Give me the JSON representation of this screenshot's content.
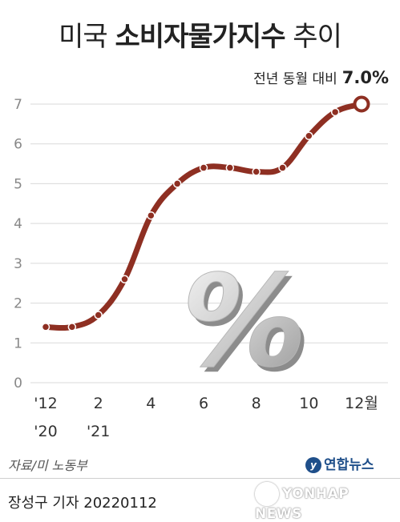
{
  "title": {
    "part1": "미국",
    "part2": "소비자물가지수",
    "part3": "추이"
  },
  "annotation": {
    "label": "전년 동월 대비",
    "value": "7.0%"
  },
  "source": "자료/미 노동부",
  "logo": "연합뉴스",
  "credit": "장성구 기자  20220112",
  "watermark": "YONHAP NEWS",
  "decorative_symbol": "%",
  "colors": {
    "line": "#8e2f22",
    "grid": "#d9d9d9",
    "axis_text": "#888888"
  },
  "chart_data": {
    "type": "line",
    "title": "미국 소비자물가지수 추이",
    "xlabel": "",
    "ylabel": "",
    "ylim": [
      0,
      7
    ],
    "yticks": [
      "0",
      "1",
      "2",
      "3",
      "4",
      "5",
      "6",
      "7"
    ],
    "x": [
      "2020-12",
      "2021-01",
      "2021-02",
      "2021-03",
      "2021-04",
      "2021-05",
      "2021-06",
      "2021-07",
      "2021-08",
      "2021-09",
      "2021-10",
      "2021-11",
      "2021-12"
    ],
    "xtick_labels": [
      {
        "index": 0,
        "top": "'12",
        "bottom": "'20"
      },
      {
        "index": 2,
        "top": "2",
        "bottom": "'21"
      },
      {
        "index": 4,
        "top": "4",
        "bottom": ""
      },
      {
        "index": 6,
        "top": "6",
        "bottom": ""
      },
      {
        "index": 8,
        "top": "8",
        "bottom": ""
      },
      {
        "index": 10,
        "top": "10",
        "bottom": ""
      },
      {
        "index": 12,
        "top": "12월",
        "bottom": ""
      }
    ],
    "series": [
      {
        "values": [
          1.4,
          1.4,
          1.7,
          2.6,
          4.2,
          5.0,
          5.4,
          5.4,
          5.3,
          5.4,
          6.2,
          6.8,
          7.0
        ]
      }
    ],
    "grid": true,
    "highlight": {
      "index": 12,
      "label": "7.0%"
    }
  }
}
